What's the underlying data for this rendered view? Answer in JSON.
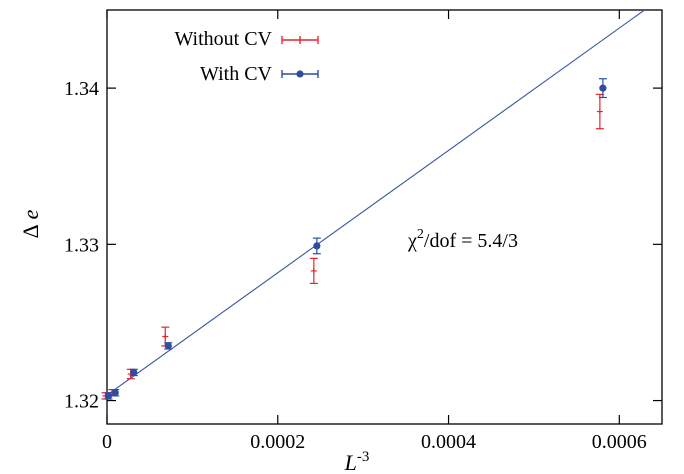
{
  "chart_data": {
    "type": "scatter",
    "xlabel": "L",
    "xlabel_sup": "-3",
    "ylabel_prefix": "Δ",
    "ylabel": "e",
    "xlim": [
      0,
      0.00065
    ],
    "ylim": [
      1.3185,
      1.345
    ],
    "xticks": [
      0,
      0.0002,
      0.0004,
      0.0006
    ],
    "xtick_labels": [
      "0",
      "0.0002",
      "0.0004",
      "0.0006"
    ],
    "yticks": [
      1.32,
      1.33,
      1.34
    ],
    "ytick_labels": [
      "1.32",
      "1.33",
      "1.34"
    ],
    "grid": false,
    "legend_position": "top-left",
    "annotation": {
      "chi": "χ",
      "sup": "2",
      "rest": "/dof = 5.4/3"
    },
    "fit_line": {
      "x": [
        0,
        0.00065
      ],
      "y": [
        1.32035,
        1.3458
      ],
      "color": "#3a56a3"
    },
    "series": [
      {
        "name": "Without CV",
        "color": "#e8252b",
        "marker": "plus",
        "points": [
          {
            "x": 0.0,
            "y": 1.3203,
            "err": 0.0002
          },
          {
            "x": 7.9e-06,
            "y": 1.3205,
            "err": 0.0002
          },
          {
            "x": 2.96e-05,
            "y": 1.3217,
            "err": 0.0003
          },
          {
            "x": 7e-05,
            "y": 1.3241,
            "err": 0.0006
          },
          {
            "x": 0.000244,
            "y": 1.3283,
            "err": 0.0008
          },
          {
            "x": 0.000579,
            "y": 1.3385,
            "err": 0.0011
          }
        ]
      },
      {
        "name": "With CV",
        "color": "#2f4d9e",
        "marker": "circle",
        "points": [
          {
            "x": 0.0,
            "y": 1.3203,
            "err": 0.0002
          },
          {
            "x": 7.9e-06,
            "y": 1.3205,
            "err": 0.0002
          },
          {
            "x": 2.96e-05,
            "y": 1.3218,
            "err": 0.0002
          },
          {
            "x": 7e-05,
            "y": 1.3235,
            "err": 0.0002
          },
          {
            "x": 0.000244,
            "y": 1.3299,
            "err": 0.0005
          },
          {
            "x": 0.000579,
            "y": 1.34,
            "err": 0.0006
          }
        ]
      }
    ]
  }
}
